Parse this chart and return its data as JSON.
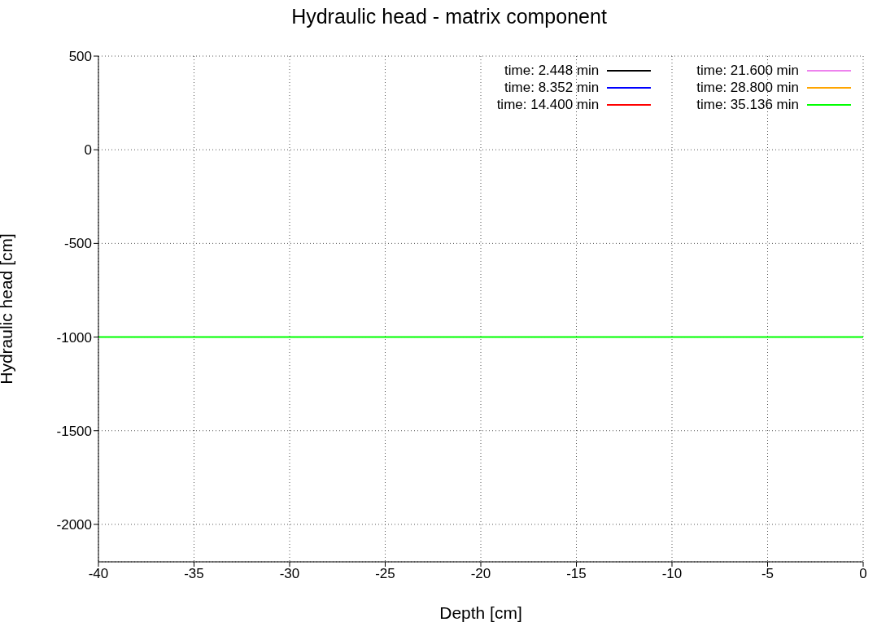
{
  "chart_data": {
    "type": "line",
    "title": "Hydraulic head - matrix component",
    "xlabel": "Depth [cm]",
    "ylabel": "Hydraulic head [cm]",
    "x": [
      -40,
      0
    ],
    "series": [
      {
        "name": "time: 2.448 min",
        "color": "#000000",
        "values": [
          null,
          null
        ]
      },
      {
        "name": "time: 8.352 min",
        "color": "#0000ff",
        "values": [
          null,
          null
        ]
      },
      {
        "name": "time: 14.400 min",
        "color": "#ff0000",
        "values": [
          null,
          null
        ]
      },
      {
        "name": "time: 21.600 min",
        "color": "#ee82ee",
        "values": [
          null,
          null
        ]
      },
      {
        "name": "time: 28.800 min",
        "color": "#ffa500",
        "values": [
          null,
          null
        ]
      },
      {
        "name": "time: 35.136 min",
        "color": "#00ff00",
        "values": [
          -1000,
          -1000
        ]
      }
    ],
    "xlim": [
      -40,
      0
    ],
    "xticks": [
      -40,
      -35,
      -30,
      -25,
      -20,
      -15,
      -10,
      -5,
      0
    ],
    "ylim": [
      -2200,
      500
    ],
    "yticks": [
      -2000,
      -1500,
      -1000,
      -500,
      0,
      500
    ],
    "grid": true,
    "legend": "top right",
    "marker": "none",
    "line_style": "solid"
  }
}
